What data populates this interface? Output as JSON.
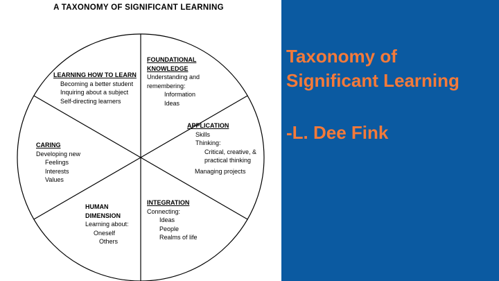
{
  "diagram": {
    "title": "A TAXONOMY OF SIGNIFICANT LEARNING",
    "segments": {
      "foundational": {
        "heading1": "FOUNDATIONAL",
        "heading2": "KNOWLEDGE",
        "line1": "Understanding and",
        "line2": "remembering:",
        "item1": "Information",
        "item2": "Ideas"
      },
      "application": {
        "heading": "APPLICATION",
        "line1": "Skills",
        "line2": "Thinking:",
        "line3": "Critical, creative, &",
        "line4": "practical thinking",
        "line5": "Managing projects"
      },
      "integration": {
        "heading": "INTEGRATION",
        "line1": "Connecting:",
        "item1": "Ideas",
        "item2": "People",
        "item3": "Realms of life"
      },
      "human_dimension": {
        "heading1": "HUMAN",
        "heading2": "DIMENSION",
        "line1": "Learning about:",
        "item1": "Oneself",
        "item2": "Others"
      },
      "caring": {
        "heading": "CARING",
        "line1": "Developing new",
        "item1": "Feelings",
        "item2": "Interests",
        "item3": "Values"
      },
      "learning_how_to_learn": {
        "heading": "LEARNING HOW TO LEARN",
        "item1": "Becoming a better student",
        "item2": "Inquiring about a subject",
        "item3": "Self-directing learners"
      }
    }
  },
  "slide": {
    "title_line1": "Taxonomy of",
    "title_line2": "Significant Learning",
    "author": "-L. Dee Fink"
  },
  "colors": {
    "panel": "#0b5aa1",
    "accent": "#f47a3a"
  }
}
